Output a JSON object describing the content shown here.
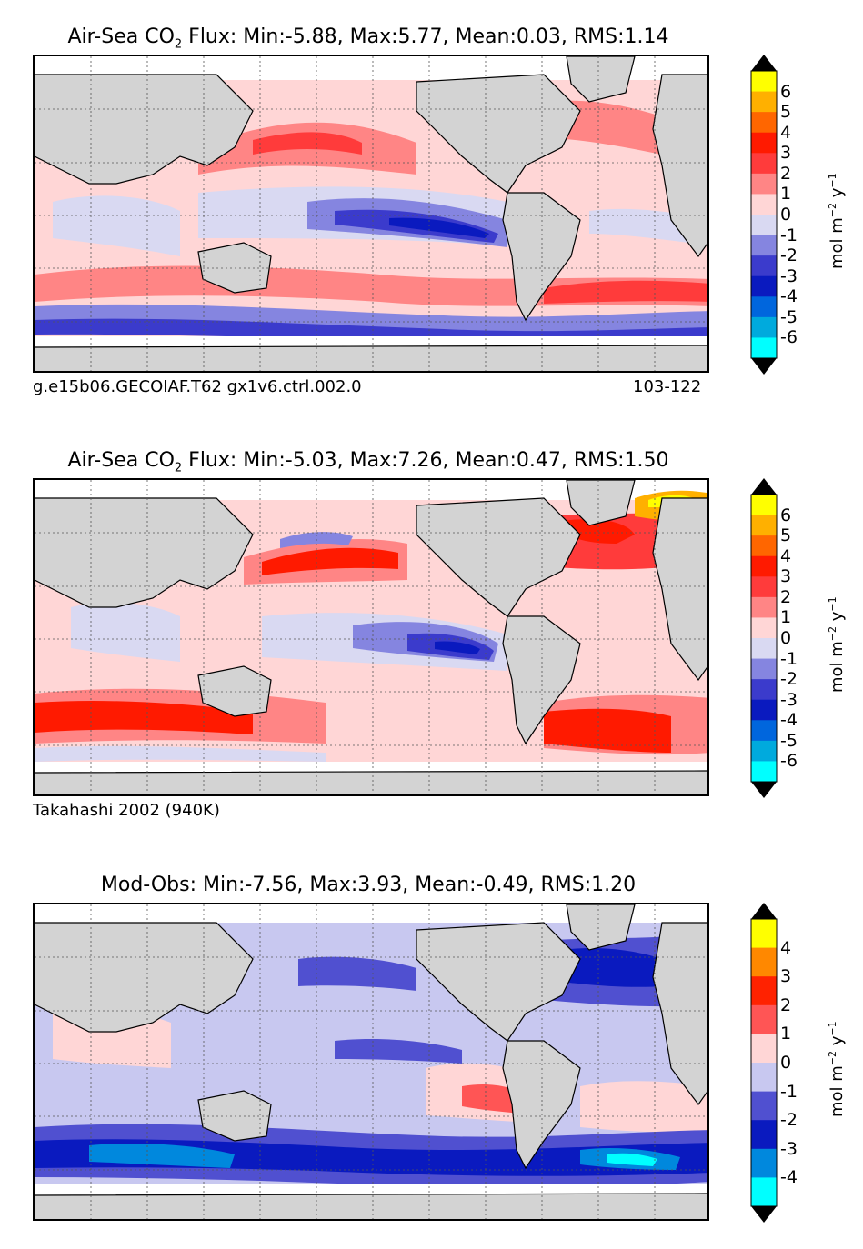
{
  "panels": [
    {
      "title_prefix": "Air-Sea CO",
      "title_sub": "2",
      "title_suffix": " Flux: Min:-5.88, Max:5.77, Mean:0.03, RMS:1.14",
      "caption_left": "g.e15b06.GECOIAF.T62 gx1v6.ctrl.002.0",
      "caption_right": "103-122",
      "colorbar": {
        "tick_labels": [
          "6",
          "5",
          "4",
          "3",
          "2",
          "1",
          "0",
          "-1",
          "-2",
          "-3",
          "-4",
          "-5",
          "-6"
        ],
        "colors_top_to_bottom": [
          "#ffff00",
          "#ffb000",
          "#ff6600",
          "#ff1a00",
          "#ff3b3b",
          "#ff8585",
          "#ffd6d6",
          "#d9d9f2",
          "#8585e0",
          "#3b3bcc",
          "#0a1abf",
          "#0066dd",
          "#00aadd",
          "#00ffff"
        ],
        "unit_text": "mol m",
        "unit_exp": "−2",
        "unit_y": "y",
        "unit_exp2": "−1"
      }
    },
    {
      "title_prefix": "Air-Sea CO",
      "title_sub": "2",
      "title_suffix": " Flux: Min:-5.03, Max:7.26, Mean:0.47, RMS:1.50",
      "caption_left": "Takahashi 2002 (940K)",
      "caption_right": "",
      "colorbar": {
        "tick_labels": [
          "6",
          "5",
          "4",
          "3",
          "2",
          "1",
          "0",
          "-1",
          "-2",
          "-3",
          "-4",
          "-5",
          "-6"
        ],
        "colors_top_to_bottom": [
          "#ffff00",
          "#ffb000",
          "#ff6600",
          "#ff1a00",
          "#ff3b3b",
          "#ff8585",
          "#ffd6d6",
          "#d9d9f2",
          "#8585e0",
          "#3b3bcc",
          "#0a1abf",
          "#0066dd",
          "#00aadd",
          "#00ffff"
        ],
        "unit_text": "mol m",
        "unit_exp": "−2",
        "unit_y": "y",
        "unit_exp2": "−1"
      }
    },
    {
      "title_prefix": "Mod-Obs: Min:-7.56, Max:3.93, Mean:-0.49, RMS:1.20",
      "title_sub": "",
      "title_suffix": "",
      "caption_left": "",
      "caption_right": "",
      "colorbar": {
        "tick_labels": [
          "4",
          "3",
          "2",
          "1",
          "0",
          "-1",
          "-2",
          "-3",
          "-4"
        ],
        "colors_top_to_bottom": [
          "#ffff00",
          "#ff8800",
          "#ff2200",
          "#ff5555",
          "#ffd6d6",
          "#c8c8f0",
          "#5050d0",
          "#0a1abf",
          "#0088dd",
          "#00ffff"
        ],
        "unit_text": "mol m",
        "unit_exp": "−2",
        "unit_y": "y",
        "unit_exp2": "−1"
      }
    }
  ],
  "colors": {
    "land": "#d3d3d3",
    "coast": "#000000",
    "grid": "#555555",
    "missing": "#ffffff"
  }
}
